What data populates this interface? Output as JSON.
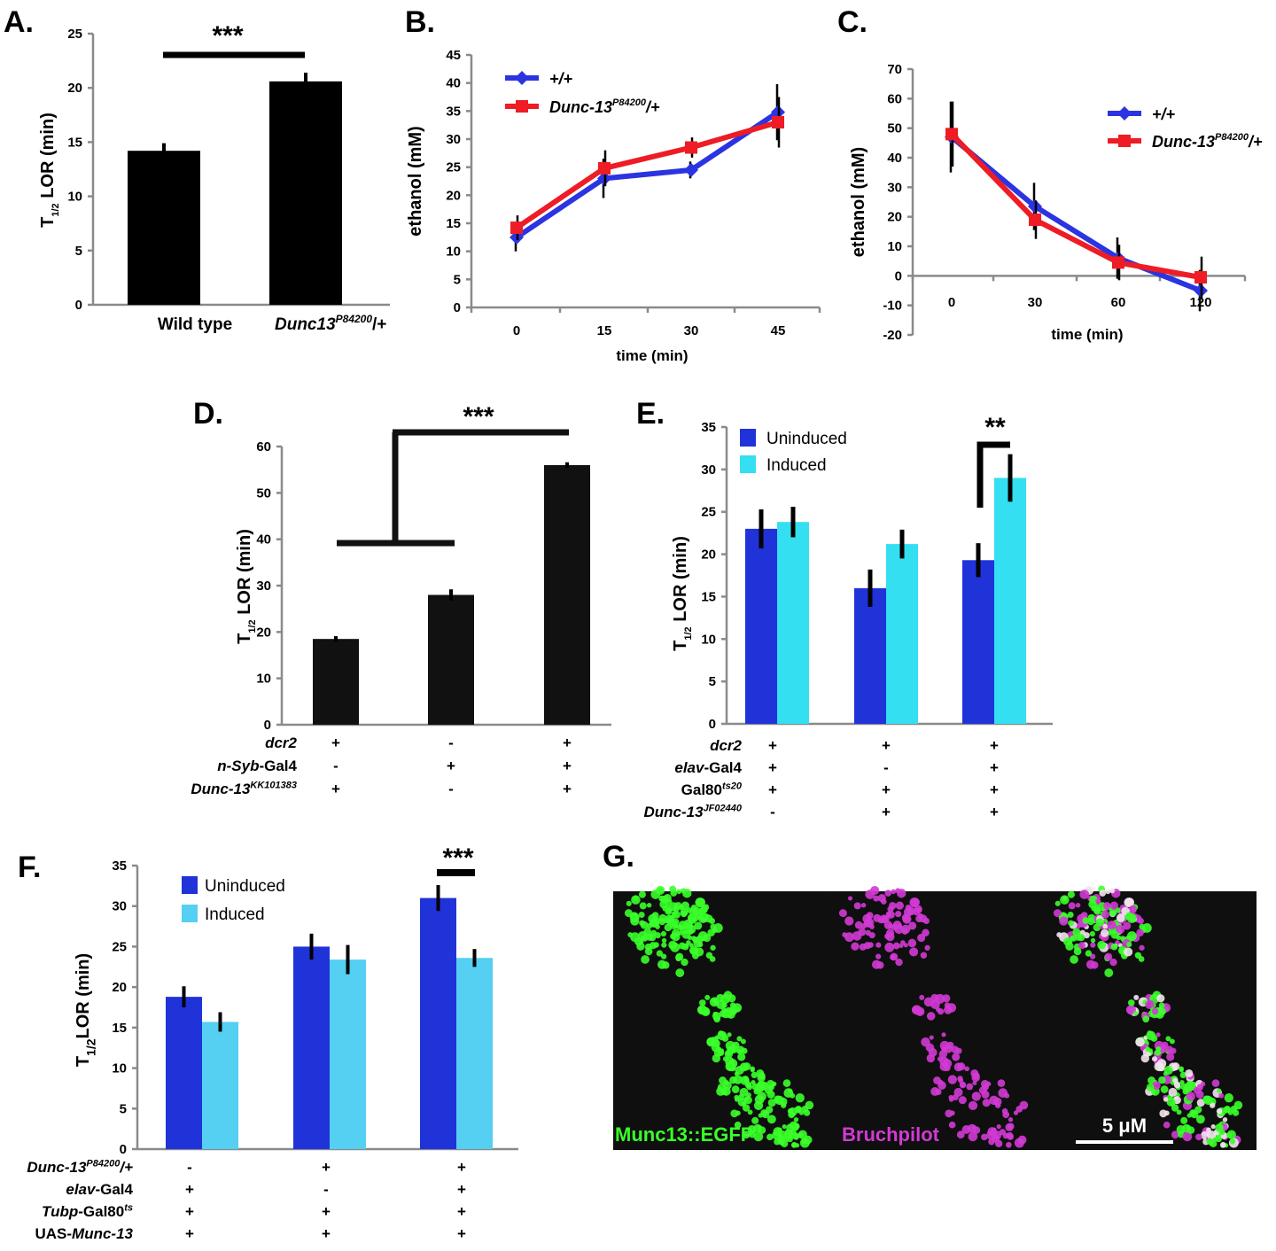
{
  "panels": {
    "A": {
      "label": "A.",
      "chart_data": {
        "type": "bar",
        "categories": [
          "Wild type",
          "Dunc13P84200/+"
        ],
        "category_display": [
          [
            "Wild type"
          ],
          [
            "Dunc13",
            "P84200",
            "/+"
          ]
        ],
        "values": [
          14.2,
          20.6
        ],
        "errors": [
          0.7,
          0.8
        ],
        "ylabel": "T1/2 LOR (min)",
        "ylabel_parts": [
          "T",
          "1/2",
          " LOR (min)"
        ],
        "ylim": [
          0,
          25
        ],
        "yticks": [
          "0",
          "5",
          "10",
          "15",
          "20",
          "25"
        ],
        "bar_color": "#000000",
        "significance": "***"
      }
    },
    "B": {
      "label": "B.",
      "chart_data": {
        "type": "line",
        "x": [
          0,
          15,
          30,
          45
        ],
        "xticks": [
          "0",
          "15",
          "30",
          "45"
        ],
        "xlabel": "time (min)",
        "ylabel": "ethanol (mM)",
        "ylim": [
          0,
          45
        ],
        "yticks": [
          "0",
          "5",
          "10",
          "15",
          "20",
          "25",
          "30",
          "35",
          "40",
          "45"
        ],
        "series": [
          {
            "name": "+/+",
            "color": "#2b34e0",
            "marker": "diamond",
            "values": [
              12.5,
              23.0,
              24.5,
              34.8
            ],
            "errors": [
              2.5,
              3.5,
              1.5,
              5.0
            ]
          },
          {
            "name": "Dunc-13P84200/+",
            "name_parts": [
              "Dunc-13",
              "P84200",
              "/+"
            ],
            "color": "#ee1c24",
            "marker": "square",
            "values": [
              14.2,
              24.8,
              28.5,
              33.0
            ],
            "errors": [
              2.2,
              3.2,
              1.8,
              4.5
            ]
          }
        ]
      }
    },
    "C": {
      "label": "C.",
      "chart_data": {
        "type": "line",
        "x": [
          0,
          30,
          60,
          120
        ],
        "xticks": [
          "0",
          "30",
          "60",
          "120"
        ],
        "xlabel": "time (min)",
        "ylabel": "ethanol (mM)",
        "ylim": [
          -20,
          70
        ],
        "yticks": [
          "-20",
          "-10",
          "0",
          "10",
          "20",
          "30",
          "40",
          "50",
          "60",
          "70"
        ],
        "series": [
          {
            "name": "+/+",
            "color": "#2b34e0",
            "marker": "diamond",
            "values": [
              47.0,
              23.5,
              6.0,
              -5.0
            ],
            "errors": [
              12.0,
              8.0,
              7.0,
              7.0
            ]
          },
          {
            "name": "Dunc-13P84200/+",
            "name_parts": [
              "Dunc-13",
              "P84200",
              "/+"
            ],
            "color": "#ee1c24",
            "marker": "square",
            "values": [
              48.0,
              19.0,
              4.5,
              -0.5
            ],
            "errors": [
              11.0,
              6.5,
              6.0,
              7.0
            ]
          }
        ]
      }
    },
    "D": {
      "label": "D.",
      "chart_data": {
        "type": "bar",
        "categories": [
          "1",
          "2",
          "3"
        ],
        "values": [
          18.5,
          28.0,
          56.0
        ],
        "errors": [
          0.6,
          1.2,
          0.6
        ],
        "ylabel": "T1/2 LOR (min)",
        "ylabel_parts": [
          "T",
          "1/2",
          " LOR (min)"
        ],
        "ylim": [
          0,
          60
        ],
        "yticks": [
          "0",
          "10",
          "20",
          "30",
          "40",
          "50",
          "60"
        ],
        "bar_color": "#111111",
        "significance": "***",
        "genotype_rows": [
          {
            "label_parts": [
              [
                "dcr2",
                "i"
              ]
            ],
            "values": [
              "+",
              "-",
              "+"
            ]
          },
          {
            "label_parts": [
              [
                "n-Syb",
                "i"
              ],
              [
                "-Gal4",
                "n"
              ]
            ],
            "values": [
              "-",
              "+",
              "+"
            ]
          },
          {
            "label_parts": [
              [
                "Dunc-13",
                "i"
              ],
              [
                "KK101383",
                "s"
              ]
            ],
            "values": [
              "+",
              "-",
              "+"
            ]
          }
        ]
      }
    },
    "E": {
      "label": "E.",
      "chart_data": {
        "type": "bar",
        "categories": [
          "1",
          "2",
          "3"
        ],
        "series": [
          {
            "name": "Uninduced",
            "color": "#1f33d9",
            "values": [
              23.0,
              16.0,
              19.3
            ],
            "errors": [
              2.3,
              2.2,
              2.0
            ]
          },
          {
            "name": "Induced",
            "color": "#33dff0",
            "values": [
              23.8,
              21.2,
              29.0
            ],
            "errors": [
              1.8,
              1.7,
              2.8
            ]
          }
        ],
        "ylabel": "T1/2 LOR (min)",
        "ylabel_parts": [
          "T",
          "1/2",
          " LOR (min)"
        ],
        "ylim": [
          0,
          35
        ],
        "yticks": [
          "0",
          "5",
          "10",
          "15",
          "20",
          "25",
          "30",
          "35"
        ],
        "significance": "**",
        "genotype_rows": [
          {
            "label_parts": [
              [
                "dcr2",
                "i"
              ]
            ],
            "values": [
              "+",
              "+",
              "+"
            ]
          },
          {
            "label_parts": [
              [
                "elav",
                "i"
              ],
              [
                "-Gal4",
                "n"
              ]
            ],
            "values": [
              "+",
              "-",
              "+"
            ]
          },
          {
            "label_parts": [
              [
                "Gal80",
                "n"
              ],
              [
                "ts20",
                "s"
              ]
            ],
            "values": [
              "+",
              "+",
              "+"
            ]
          },
          {
            "label_parts": [
              [
                "Dunc-13",
                "i"
              ],
              [
                "JF02440",
                "s"
              ]
            ],
            "values": [
              "-",
              "+",
              "+"
            ]
          }
        ]
      }
    },
    "F": {
      "label": "F.",
      "chart_data": {
        "type": "bar",
        "categories": [
          "1",
          "2",
          "3"
        ],
        "series": [
          {
            "name": "Uninduced",
            "color": "#1f33d9",
            "values": [
              18.8,
              25.0,
              31.0
            ],
            "errors": [
              1.3,
              1.6,
              1.6
            ]
          },
          {
            "name": "Induced",
            "color": "#55cff2",
            "values": [
              15.7,
              23.4,
              23.6
            ],
            "errors": [
              1.2,
              1.8,
              1.1
            ]
          }
        ],
        "ylabel": "T1/2LOR (min)",
        "ylabel_parts": [
          "T",
          "1/2",
          "LOR (min)"
        ],
        "ylim": [
          0,
          35
        ],
        "yticks": [
          "0",
          "5",
          "10",
          "15",
          "20",
          "25",
          "30",
          "35"
        ],
        "significance": "***",
        "genotype_rows": [
          {
            "label_parts": [
              [
                "Dunc-13",
                "i"
              ],
              [
                "P84200",
                "s"
              ],
              [
                "/+",
                "i"
              ]
            ],
            "values": [
              "-",
              "+",
              "+"
            ]
          },
          {
            "label_parts": [
              [
                "elav",
                "i"
              ],
              [
                "-Gal4",
                "n"
              ]
            ],
            "values": [
              "+",
              "-",
              "+"
            ]
          },
          {
            "label_parts": [
              [
                "Tubp",
                "i"
              ],
              [
                "-Gal80",
                "n"
              ],
              [
                "ts",
                "s"
              ]
            ],
            "values": [
              "+",
              "+",
              "+"
            ]
          },
          {
            "label_parts": [
              [
                "UAS-",
                "n"
              ],
              [
                "Munc-13",
                "i"
              ]
            ],
            "values": [
              "+",
              "+",
              "+"
            ]
          }
        ]
      }
    },
    "G": {
      "label": "G.",
      "channels": [
        {
          "name": "Munc13::EGFP",
          "color": "#3aff2a"
        },
        {
          "name": "Bruchpilot",
          "color": "#d13ad4"
        }
      ],
      "scale_bar": "5 μM"
    }
  }
}
